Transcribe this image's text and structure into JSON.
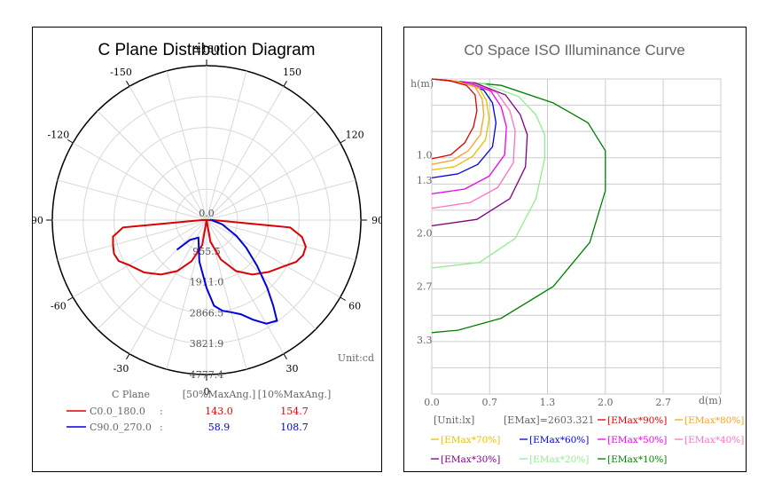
{
  "chart_data": [
    {
      "type": "polar-line",
      "title": "C Plane Distribution Diagram",
      "unit_label": "Unit:cd",
      "angle_labels": [
        "±180",
        "150",
        "120",
        "90",
        "60",
        "30",
        "0",
        "-30",
        "-60",
        "-90",
        "-120",
        "-150"
      ],
      "radial_labels": [
        "0.0",
        "955.5",
        "1911.0",
        "2866.5",
        "3821.9",
        "4777.4"
      ],
      "radial_max": 4777.4,
      "table_headers": [
        "C Plane",
        "[50%MaxAng.]",
        "[10%MaxAng.]"
      ],
      "series": [
        {
          "name": "C0.0_180.0",
          "color": "#dd0000",
          "beam50": "143.0",
          "beam10": "154.7",
          "points": [
            [
              0,
              0
            ],
            [
              -10,
              780
            ],
            [
              -20,
              1350
            ],
            [
              -30,
              1820
            ],
            [
              -40,
              2200
            ],
            [
              -50,
              2520
            ],
            [
              -60,
              2780
            ],
            [
              -65,
              3000
            ],
            [
              -70,
              3050
            ],
            [
              -75,
              3000
            ],
            [
              -80,
              2940
            ],
            [
              -85,
              2600
            ],
            [
              -90,
              150
            ],
            [
              -100,
              0
            ],
            [
              10,
              680
            ],
            [
              20,
              1300
            ],
            [
              30,
              1820
            ],
            [
              40,
              2200
            ],
            [
              50,
              2500
            ],
            [
              60,
              2820
            ],
            [
              65,
              3060
            ],
            [
              70,
              3180
            ],
            [
              75,
              3180
            ],
            [
              80,
              3000
            ],
            [
              85,
              2600
            ],
            [
              90,
              200
            ],
            [
              100,
              0
            ]
          ]
        },
        {
          "name": "C90.0_270.0",
          "color": "#0000dd",
          "beam50": "58.9",
          "beam10": "108.7",
          "points": [
            [
              -45,
              1300
            ],
            [
              -40,
              800
            ],
            [
              -25,
              600
            ],
            [
              -10,
              1300
            ],
            [
              0,
              2100
            ],
            [
              5,
              2660
            ],
            [
              10,
              2850
            ],
            [
              15,
              2950
            ],
            [
              20,
              3100
            ],
            [
              25,
              3400
            ],
            [
              30,
              3700
            ],
            [
              35,
              3800
            ],
            [
              38,
              3350
            ],
            [
              42,
              2800
            ],
            [
              48,
              2100
            ],
            [
              55,
              1500
            ],
            [
              62,
              1050
            ],
            [
              75,
              500
            ],
            [
              95,
              120
            ]
          ]
        }
      ]
    },
    {
      "type": "line",
      "title": "C0 Space ISO Illuminance Curve",
      "xlabel": "d(m)",
      "ylabel": "h(m)",
      "x_ticks": [
        "0.0",
        "0.7",
        "1.3",
        "2.0",
        "2.7"
      ],
      "y_ticks": [
        "1.0",
        "1.3",
        "2.0",
        "2.7",
        "3.3"
      ],
      "unit": "[Unit:lx]",
      "emax": "[EMax]=2603.321",
      "series": [
        {
          "name": "[EMax*90%]",
          "color": "#e00000",
          "points": [
            [
              0,
              0
            ],
            [
              0.2,
              0.02
            ],
            [
              0.4,
              0.08
            ],
            [
              0.5,
              0.2
            ],
            [
              0.52,
              0.4
            ],
            [
              0.48,
              0.6
            ],
            [
              0.38,
              0.8
            ],
            [
              0.22,
              0.95
            ],
            [
              0,
              1.0
            ]
          ]
        },
        {
          "name": "[EMax*80%]",
          "color": "#ffa020",
          "points": [
            [
              0,
              0
            ],
            [
              0.3,
              0.03
            ],
            [
              0.5,
              0.1
            ],
            [
              0.58,
              0.25
            ],
            [
              0.6,
              0.45
            ],
            [
              0.56,
              0.7
            ],
            [
              0.42,
              0.9
            ],
            [
              0.24,
              1.02
            ],
            [
              0,
              1.07
            ]
          ]
        },
        {
          "name": "[EMax*70%]",
          "color": "#e8c000",
          "points": [
            [
              0,
              0
            ],
            [
              0.3,
              0.03
            ],
            [
              0.55,
              0.12
            ],
            [
              0.63,
              0.27
            ],
            [
              0.66,
              0.5
            ],
            [
              0.62,
              0.76
            ],
            [
              0.47,
              0.97
            ],
            [
              0.26,
              1.1
            ],
            [
              0,
              1.14
            ]
          ]
        },
        {
          "name": "[EMax*60%]",
          "color": "#0000e0",
          "points": [
            [
              0,
              0
            ],
            [
              0.35,
              0.04
            ],
            [
              0.6,
              0.14
            ],
            [
              0.7,
              0.3
            ],
            [
              0.74,
              0.55
            ],
            [
              0.7,
              0.85
            ],
            [
              0.53,
              1.07
            ],
            [
              0.3,
              1.19
            ],
            [
              0,
              1.24
            ]
          ]
        },
        {
          "name": "[EMax*50%]",
          "color": "#f000f0",
          "points": [
            [
              0,
              0
            ],
            [
              0.4,
              0.04
            ],
            [
              0.68,
              0.15
            ],
            [
              0.8,
              0.35
            ],
            [
              0.86,
              0.6
            ],
            [
              0.84,
              0.95
            ],
            [
              0.66,
              1.22
            ],
            [
              0.38,
              1.38
            ],
            [
              0,
              1.44
            ]
          ]
        },
        {
          "name": "[EMax*40%]",
          "color": "#ff70c0",
          "points": [
            [
              0,
              0
            ],
            [
              0.45,
              0.05
            ],
            [
              0.75,
              0.17
            ],
            [
              0.9,
              0.4
            ],
            [
              0.96,
              0.65
            ],
            [
              0.94,
              1.05
            ],
            [
              0.76,
              1.36
            ],
            [
              0.44,
              1.55
            ],
            [
              0,
              1.62
            ]
          ]
        },
        {
          "name": "[EMax*30%]",
          "color": "#800080",
          "points": [
            [
              0,
              0
            ],
            [
              0.5,
              0.05
            ],
            [
              0.85,
              0.2
            ],
            [
              1.02,
              0.45
            ],
            [
              1.1,
              0.7
            ],
            [
              1.08,
              1.1
            ],
            [
              0.9,
              1.5
            ],
            [
              0.52,
              1.76
            ],
            [
              0,
              1.84
            ]
          ]
        },
        {
          "name": "[EMax*20%]",
          "color": "#90ee90",
          "points": [
            [
              0,
              0
            ],
            [
              0.6,
              0.06
            ],
            [
              1.0,
              0.22
            ],
            [
              1.2,
              0.45
            ],
            [
              1.3,
              0.7
            ],
            [
              1.3,
              1.0
            ],
            [
              1.2,
              1.5
            ],
            [
              0.96,
              2.0
            ],
            [
              0.55,
              2.3
            ],
            [
              0,
              2.37
            ]
          ]
        },
        {
          "name": "[EMax*10%]",
          "color": "#008000",
          "points": [
            [
              0,
              0
            ],
            [
              0.8,
              0.08
            ],
            [
              1.4,
              0.3
            ],
            [
              1.8,
              0.55
            ],
            [
              2.0,
              0.9
            ],
            [
              2.0,
              1.4
            ],
            [
              1.82,
              2.05
            ],
            [
              1.4,
              2.6
            ],
            [
              0.8,
              3.0
            ],
            [
              0.3,
              3.15
            ],
            [
              0,
              3.18
            ]
          ]
        }
      ]
    }
  ]
}
